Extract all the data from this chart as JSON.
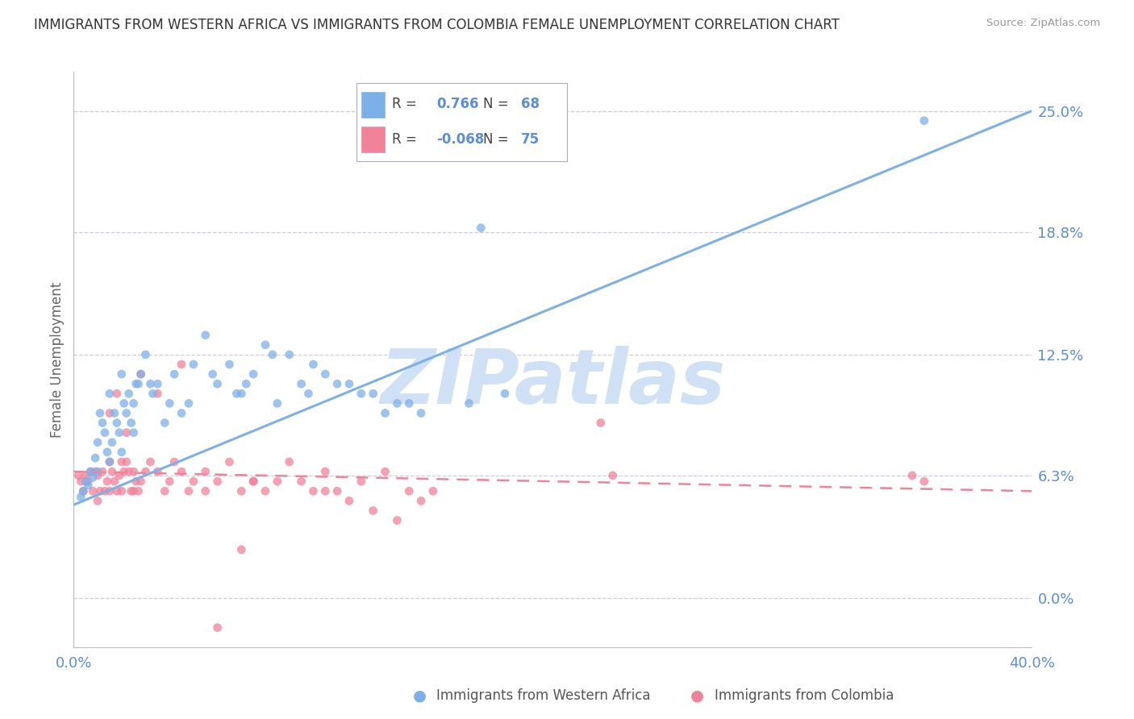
{
  "title": "IMMIGRANTS FROM WESTERN AFRICA VS IMMIGRANTS FROM COLOMBIA FEMALE UNEMPLOYMENT CORRELATION CHART",
  "source": "Source: ZipAtlas.com",
  "ylabel": "Female Unemployment",
  "ytick_values": [
    0.0,
    6.3,
    12.5,
    18.8,
    25.0
  ],
  "xlim": [
    0.0,
    40.0
  ],
  "ylim": [
    -2.5,
    27.0
  ],
  "series1_label": "Immigrants from Western Africa",
  "series1_color": "#7EB0E8",
  "series1_R": "0.766",
  "series1_N": "68",
  "series2_label": "Immigrants from Colombia",
  "series2_color": "#F0829A",
  "series2_R": "-0.068",
  "series2_N": "75",
  "watermark": "ZIPatlas",
  "watermark_color": "#D0E0F5",
  "background_color": "#FFFFFF",
  "grid_color": "#CCCCDD",
  "line1_x0": 0.0,
  "line1_y0": 4.8,
  "line1_x1": 40.0,
  "line1_y1": 25.0,
  "line2_x0": 0.0,
  "line2_y0": 6.5,
  "line2_x1": 40.0,
  "line2_y1": 5.5,
  "series1_x": [
    0.3,
    0.4,
    0.5,
    0.6,
    0.7,
    0.8,
    0.9,
    1.0,
    1.0,
    1.1,
    1.2,
    1.3,
    1.4,
    1.5,
    1.5,
    1.6,
    1.7,
    1.8,
    1.9,
    2.0,
    2.0,
    2.1,
    2.2,
    2.3,
    2.4,
    2.5,
    2.5,
    2.6,
    2.8,
    3.0,
    3.2,
    3.5,
    3.8,
    4.0,
    4.2,
    4.5,
    5.0,
    5.5,
    6.0,
    6.5,
    7.0,
    7.5,
    8.0,
    8.5,
    9.0,
    9.5,
    10.0,
    11.0,
    12.0,
    13.0,
    14.0,
    16.5,
    17.0,
    18.0,
    2.7,
    3.3,
    4.8,
    5.8,
    6.8,
    7.2,
    8.3,
    9.8,
    10.5,
    11.5,
    12.5,
    13.5,
    14.5,
    35.5
  ],
  "series1_y": [
    5.2,
    5.5,
    6.0,
    5.8,
    6.5,
    6.2,
    7.2,
    8.0,
    6.5,
    9.5,
    9.0,
    8.5,
    7.5,
    10.5,
    7.0,
    8.0,
    9.5,
    9.0,
    8.5,
    11.5,
    7.5,
    10.0,
    9.5,
    10.5,
    9.0,
    10.0,
    8.5,
    11.0,
    11.5,
    12.5,
    11.0,
    11.0,
    9.0,
    10.0,
    11.5,
    9.5,
    12.0,
    13.5,
    11.0,
    12.0,
    10.5,
    11.5,
    13.0,
    10.0,
    12.5,
    11.0,
    12.0,
    11.0,
    10.5,
    9.5,
    10.0,
    10.0,
    19.0,
    10.5,
    11.0,
    10.5,
    10.0,
    11.5,
    10.5,
    11.0,
    12.5,
    10.5,
    11.5,
    11.0,
    10.5,
    10.0,
    9.5,
    24.5
  ],
  "series2_x": [
    0.2,
    0.3,
    0.4,
    0.5,
    0.6,
    0.7,
    0.8,
    0.9,
    1.0,
    1.0,
    1.1,
    1.2,
    1.3,
    1.4,
    1.5,
    1.5,
    1.6,
    1.7,
    1.8,
    1.9,
    2.0,
    2.0,
    2.1,
    2.2,
    2.3,
    2.4,
    2.5,
    2.5,
    2.6,
    2.7,
    2.8,
    3.0,
    3.2,
    3.5,
    3.8,
    4.0,
    4.2,
    4.5,
    4.8,
    5.0,
    5.5,
    6.0,
    6.5,
    7.0,
    7.5,
    8.0,
    8.5,
    9.0,
    9.5,
    10.0,
    11.0,
    12.0,
    13.0,
    14.0,
    15.0,
    1.5,
    1.8,
    2.2,
    2.8,
    3.5,
    4.5,
    5.5,
    7.5,
    10.5,
    22.0,
    22.5,
    35.0,
    35.5,
    10.5,
    11.5,
    12.5,
    13.5,
    14.5,
    6.0,
    7.0
  ],
  "series2_y": [
    6.3,
    6.0,
    5.5,
    6.3,
    6.0,
    6.5,
    5.5,
    6.5,
    6.3,
    5.0,
    5.5,
    6.5,
    5.5,
    6.0,
    7.0,
    5.5,
    6.5,
    6.0,
    5.5,
    6.3,
    7.0,
    5.5,
    6.5,
    7.0,
    6.5,
    5.5,
    6.5,
    5.5,
    6.0,
    5.5,
    6.0,
    6.5,
    7.0,
    6.5,
    5.5,
    6.0,
    7.0,
    6.5,
    5.5,
    6.0,
    5.5,
    6.0,
    7.0,
    5.5,
    6.0,
    5.5,
    6.0,
    7.0,
    6.0,
    5.5,
    5.5,
    6.0,
    6.5,
    5.5,
    5.5,
    9.5,
    10.5,
    8.5,
    11.5,
    10.5,
    12.0,
    6.5,
    6.0,
    6.5,
    9.0,
    6.3,
    6.3,
    6.0,
    5.5,
    5.0,
    4.5,
    4.0,
    5.0,
    -1.5,
    2.5
  ]
}
